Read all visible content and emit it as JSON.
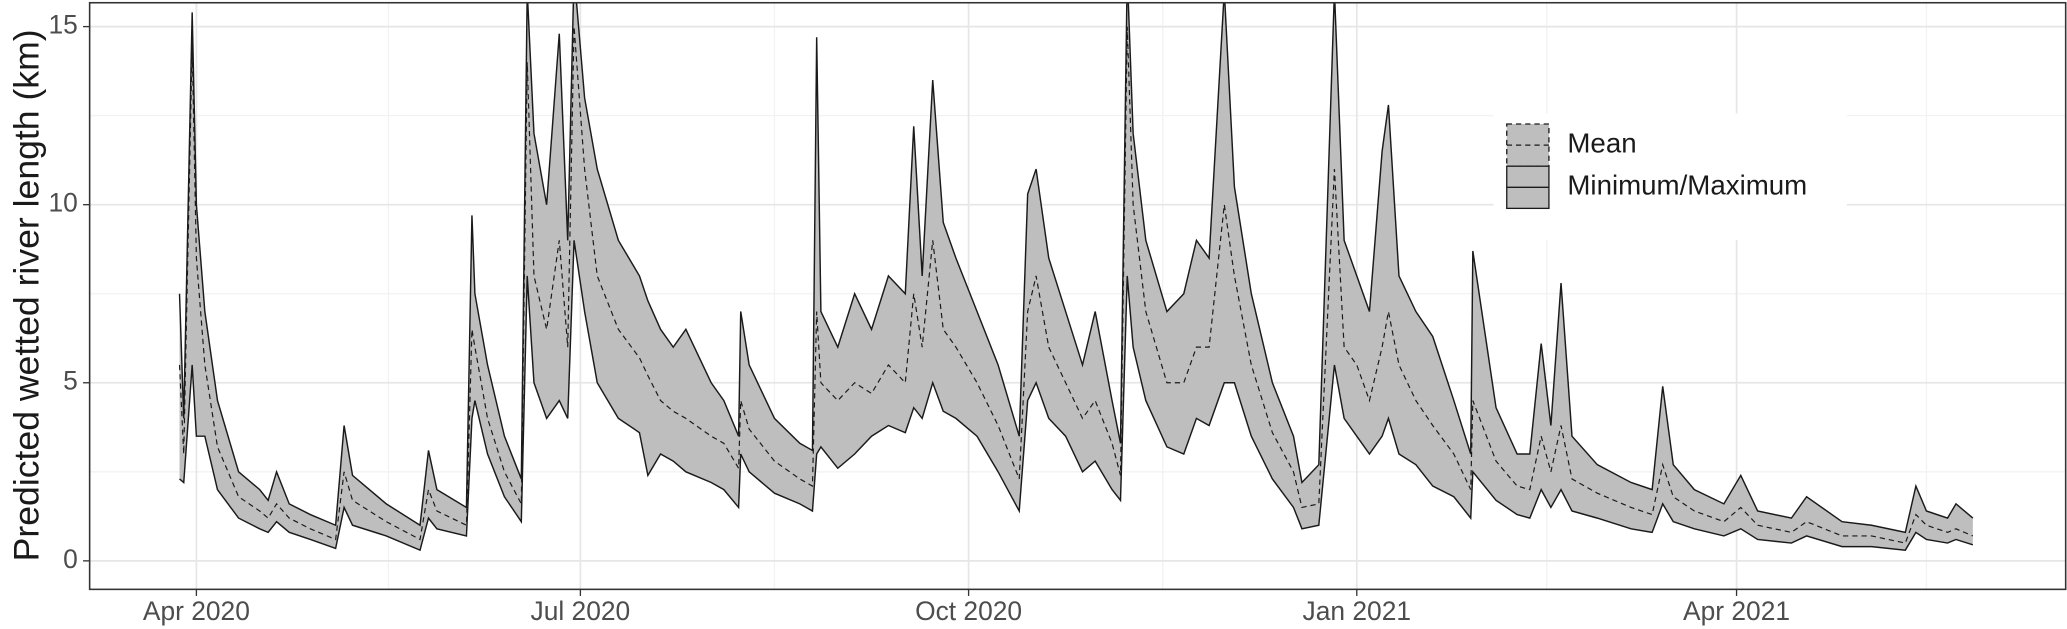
{
  "chart_data": {
    "type": "ribbon-line",
    "y_label": "Predicted wetted river length (km)",
    "x": [
      -4,
      -3,
      -1,
      0,
      2,
      5,
      10,
      15,
      17,
      19,
      22,
      27,
      33,
      35,
      37,
      45,
      53,
      55,
      57,
      64,
      65.3,
      66,
      69,
      73,
      77,
      78.4,
      80,
      83,
      86,
      88,
      89.5,
      92,
      95,
      100,
      105,
      107,
      110,
      113,
      116,
      122,
      125,
      128.5,
      129,
      131,
      137,
      143,
      146,
      147,
      148,
      152,
      156,
      160,
      164,
      168,
      170,
      172,
      174.5,
      177,
      180,
      185,
      190,
      195,
      197,
      199,
      202,
      206,
      210,
      213,
      217,
      219,
      220.6,
      222,
      225,
      230,
      234,
      237,
      240,
      243.6,
      246,
      250,
      255,
      260,
      262,
      266,
      269.7,
      272,
      275,
      278,
      281,
      282.5,
      285,
      289,
      293,
      298,
      302,
      302.5,
      308,
      313,
      316,
      318.7,
      321,
      323.4,
      326,
      332,
      340,
      345,
      347.5,
      350,
      355,
      362,
      366,
      370,
      378,
      381.6,
      390,
      397,
      405,
      407.5,
      410,
      415,
      417,
      421
    ],
    "series": [
      {
        "name": "Mean",
        "color": "#1a1a1a",
        "fill": "#bebebe",
        "values": [
          5.5,
          3,
          14.5,
          8.5,
          5.5,
          3.2,
          1.8,
          1.4,
          1.2,
          1.6,
          1.2,
          0.9,
          0.6,
          2.5,
          1.7,
          1.1,
          0.6,
          2,
          1.4,
          1,
          6.5,
          6,
          4,
          2.5,
          1.6,
          14,
          8,
          6.5,
          9,
          6,
          15,
          11,
          8,
          6.5,
          5.7,
          5.2,
          4.5,
          4.2,
          4,
          3.5,
          3.3,
          2.6,
          4.5,
          3.7,
          2.8,
          2.3,
          2.1,
          7,
          5,
          4.5,
          5,
          4.7,
          5.5,
          5,
          7.5,
          6,
          9,
          6.5,
          6,
          5,
          3.8,
          2.3,
          7,
          8,
          6,
          5,
          4,
          4.5,
          3.3,
          2.4,
          15,
          10,
          7,
          5,
          5,
          6,
          6,
          10,
          8,
          5.5,
          3.6,
          2.5,
          1.5,
          1.6,
          11,
          6,
          5.5,
          4.5,
          6,
          7,
          5.5,
          4.5,
          3.8,
          3,
          2,
          4.5,
          2.8,
          2.1,
          2,
          3.5,
          2.5,
          3.8,
          2.3,
          1.9,
          1.5,
          1.3,
          2.7,
          1.8,
          1.4,
          1.1,
          1.5,
          1,
          0.8,
          1.1,
          0.7,
          0.7,
          0.5,
          1.3,
          1,
          0.8,
          0.9,
          0.7
        ]
      },
      {
        "name": "Minimum/Maximum",
        "color": "#1a1a1a",
        "fill": "#bebebe",
        "lower": [
          2.3,
          2.2,
          5.5,
          3.5,
          3.5,
          2,
          1.2,
          0.9,
          0.8,
          1.1,
          0.8,
          0.6,
          0.35,
          1.5,
          1,
          0.7,
          0.3,
          1.2,
          0.9,
          0.7,
          4,
          4.5,
          3,
          1.8,
          1.1,
          8,
          5,
          4,
          4.5,
          4,
          9,
          7,
          5,
          4,
          3.6,
          2.4,
          3,
          2.8,
          2.5,
          2.2,
          2,
          1.5,
          3,
          2.5,
          1.9,
          1.6,
          1.4,
          3,
          3.2,
          2.6,
          3,
          3.5,
          3.8,
          3.6,
          4.3,
          4,
          5,
          4.2,
          4,
          3.5,
          2.5,
          1.4,
          4.5,
          5,
          4,
          3.5,
          2.5,
          2.8,
          2,
          1.7,
          8,
          6,
          4.5,
          3.2,
          3,
          4,
          3.8,
          5,
          5,
          3.5,
          2.3,
          1.5,
          0.9,
          1,
          5.5,
          4,
          3.5,
          3,
          3.5,
          4,
          3,
          2.7,
          2.1,
          1.8,
          1.2,
          2.5,
          1.7,
          1.3,
          1.2,
          2,
          1.5,
          2,
          1.4,
          1.2,
          0.9,
          0.8,
          1.6,
          1.1,
          0.9,
          0.7,
          0.9,
          0.6,
          0.5,
          0.7,
          0.4,
          0.4,
          0.3,
          0.8,
          0.6,
          0.5,
          0.6,
          0.45
        ],
        "upper": [
          7.5,
          4,
          15.4,
          10,
          7,
          4.5,
          2.5,
          2,
          1.7,
          2.5,
          1.6,
          1.3,
          1,
          3.8,
          2.4,
          1.6,
          1,
          3.1,
          2,
          1.5,
          9.7,
          7.5,
          5.5,
          3.5,
          2.3,
          16,
          12,
          10,
          14.8,
          9,
          16.5,
          13,
          11,
          9,
          8,
          7.3,
          6.5,
          6,
          6.5,
          5,
          4.5,
          3.5,
          7,
          5.5,
          4,
          3.3,
          3.1,
          14.7,
          7,
          6,
          7.5,
          6.5,
          8,
          7.5,
          12.2,
          8,
          13.5,
          9.5,
          8.5,
          7,
          5.5,
          3.5,
          10.3,
          11,
          8.5,
          7,
          5.5,
          7,
          4.5,
          3.3,
          16.5,
          12,
          9,
          7,
          7.5,
          9,
          8.5,
          16,
          10.5,
          7.5,
          5,
          3.5,
          2.2,
          2.7,
          16,
          9,
          8,
          7,
          11.5,
          12.8,
          8,
          7,
          6.3,
          4.5,
          3,
          8.7,
          4.3,
          3,
          3,
          6.1,
          3.8,
          7.8,
          3.5,
          2.7,
          2.2,
          2,
          4.9,
          2.7,
          2,
          1.6,
          2.4,
          1.4,
          1.2,
          1.8,
          1.1,
          1,
          0.8,
          2.1,
          1.4,
          1.2,
          1.6,
          1.2
        ]
      }
    ],
    "xlim": [
      -25.3,
      443
    ],
    "xticks": [
      {
        "value": 0,
        "label": "Apr 2020"
      },
      {
        "value": 91,
        "label": "Jul 2020"
      },
      {
        "value": 183,
        "label": "Oct 2020"
      },
      {
        "value": 275,
        "label": "Jan 2021"
      },
      {
        "value": 365,
        "label": "Apr 2021"
      }
    ],
    "ylim": [
      -0.8,
      15.67
    ],
    "yticks": [
      0,
      5,
      10,
      15
    ],
    "grid": true,
    "legend": "inside-top-right"
  }
}
